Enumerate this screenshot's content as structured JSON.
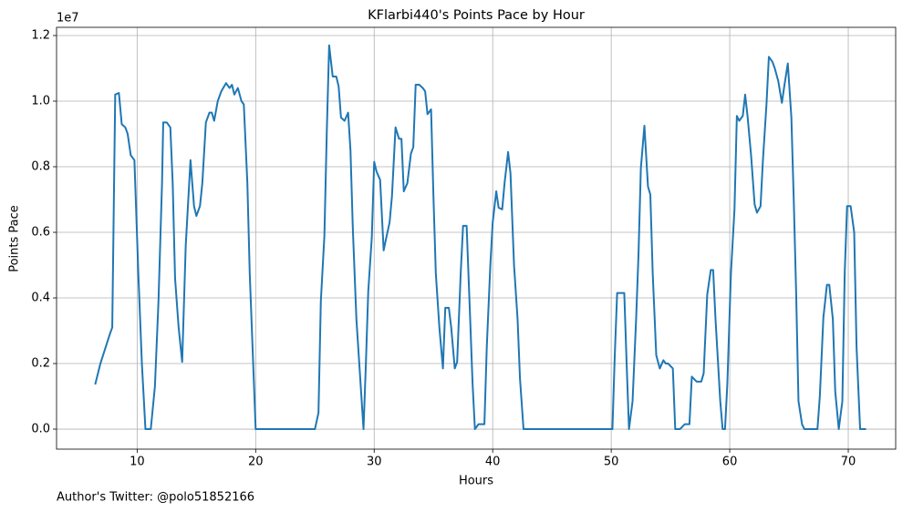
{
  "chart_data": {
    "type": "line",
    "title": "KFlarbi440's Points Pace by Hour",
    "x_label": "Hours",
    "y_label": "Points Pace",
    "y_offset_label": "1e7",
    "caption": "Author's Twitter: @polo51852166",
    "color": "#1f77b4",
    "grid": true,
    "xlim": [
      3.2,
      74.0
    ],
    "ylim": [
      -610000,
      12250000
    ],
    "xticks": [
      10,
      20,
      30,
      40,
      50,
      60,
      70
    ],
    "yticks": [
      {
        "value": 0,
        "label": "0.0"
      },
      {
        "value": 2000000,
        "label": "0.2"
      },
      {
        "value": 4000000,
        "label": "0.4"
      },
      {
        "value": 6000000,
        "label": "0.6"
      },
      {
        "value": 8000000,
        "label": "0.8"
      },
      {
        "value": 10000000,
        "label": "1.0"
      },
      {
        "value": 12000000,
        "label": "1.2"
      }
    ],
    "x": [
      6.46,
      6.9,
      7.7,
      7.9,
      8.15,
      8.46,
      8.7,
      9.0,
      9.2,
      9.46,
      9.77,
      10.1,
      10.4,
      10.7,
      11.15,
      11.5,
      11.8,
      12.1,
      12.2,
      12.5,
      12.8,
      13.0,
      13.2,
      13.5,
      13.8,
      14.1,
      14.5,
      14.8,
      15.0,
      15.3,
      15.5,
      15.8,
      16.1,
      16.3,
      16.5,
      16.8,
      17.1,
      17.5,
      17.8,
      18.0,
      18.2,
      18.5,
      18.8,
      19.0,
      19.3,
      19.5,
      20.0,
      25.0,
      25.3,
      25.5,
      25.8,
      26.0,
      26.2,
      26.5,
      26.8,
      27.0,
      27.2,
      27.5,
      27.8,
      28.0,
      28.2,
      28.5,
      29.1,
      29.3,
      29.5,
      29.8,
      30.0,
      30.2,
      30.5,
      30.8,
      31.0,
      31.3,
      31.5,
      31.8,
      32.1,
      32.3,
      32.5,
      32.8,
      33.1,
      33.3,
      33.5,
      33.8,
      34.1,
      34.3,
      34.5,
      34.8,
      35.0,
      35.2,
      35.5,
      35.8,
      36.0,
      36.3,
      36.5,
      36.8,
      37.0,
      37.3,
      37.5,
      37.8,
      38.1,
      38.3,
      38.5,
      38.8,
      39.3,
      39.5,
      39.8,
      40.0,
      40.3,
      40.5,
      40.8,
      41.0,
      41.3,
      41.5,
      41.8,
      42.1,
      42.3,
      42.6,
      50.1,
      50.3,
      50.5,
      51.1,
      51.3,
      51.5,
      51.8,
      52.1,
      52.3,
      52.5,
      52.8,
      53.1,
      53.3,
      53.5,
      53.8,
      54.1,
      54.4,
      54.6,
      54.8,
      55.2,
      55.4,
      55.8,
      56.2,
      56.6,
      56.8,
      57.2,
      57.6,
      57.8,
      58.1,
      58.4,
      58.6,
      58.8,
      59.2,
      59.4,
      59.6,
      59.8,
      60.1,
      60.4,
      60.6,
      60.8,
      61.1,
      61.3,
      61.5,
      61.8,
      62.1,
      62.3,
      62.6,
      62.8,
      63.1,
      63.3,
      63.6,
      63.8,
      64.1,
      64.4,
      64.6,
      64.9,
      65.2,
      65.4,
      65.6,
      65.8,
      66.1,
      66.3,
      67.4,
      67.6,
      67.9,
      68.2,
      68.4,
      68.7,
      68.9,
      69.2,
      69.5,
      69.7,
      69.9,
      70.2,
      70.5,
      70.7,
      71.0,
      71.5
    ],
    "values": [
      1360000,
      2000000,
      2900000,
      3100000,
      10200000,
      10250000,
      9300000,
      9200000,
      9000000,
      8350000,
      8200000,
      4750000,
      2000000,
      0,
      0,
      1300000,
      3900000,
      7500000,
      9350000,
      9350000,
      9200000,
      7500000,
      4600000,
      3100000,
      2050000,
      5600000,
      8200000,
      6800000,
      6500000,
      6800000,
      7500000,
      9350000,
      9650000,
      9650000,
      9400000,
      10000000,
      10300000,
      10550000,
      10400000,
      10500000,
      10200000,
      10400000,
      10000000,
      9900000,
      7500000,
      4750000,
      0,
      0,
      500000,
      3900000,
      5900000,
      9050000,
      11700000,
      10750000,
      10750000,
      10450000,
      9500000,
      9400000,
      9650000,
      8500000,
      6100000,
      3350000,
      0,
      2000000,
      4200000,
      5850000,
      8150000,
      7850000,
      7600000,
      5450000,
      5800000,
      6300000,
      7100000,
      9200000,
      8850000,
      8850000,
      7250000,
      7500000,
      8400000,
      8600000,
      10500000,
      10500000,
      10400000,
      10300000,
      9600000,
      9750000,
      7100000,
      4750000,
      3100000,
      1850000,
      3700000,
      3700000,
      3100000,
      1850000,
      2050000,
      4750000,
      6200000,
      6200000,
      3350000,
      1400000,
      0,
      150000,
      150000,
      2500000,
      5000000,
      6300000,
      7250000,
      6750000,
      6700000,
      7500000,
      8450000,
      7800000,
      5000000,
      3350000,
      1550000,
      0,
      0,
      2250000,
      4150000,
      4150000,
      2000000,
      0,
      850000,
      3350000,
      5300000,
      7950000,
      9250000,
      7400000,
      7150000,
      4750000,
      2250000,
      1850000,
      2100000,
      2000000,
      2000000,
      1850000,
      0,
      0,
      150000,
      150000,
      1600000,
      1450000,
      1450000,
      1700000,
      4100000,
      4850000,
      4850000,
      3350000,
      850000,
      0,
      0,
      1400000,
      4750000,
      6700000,
      9550000,
      9400000,
      9550000,
      10200000,
      9550000,
      8350000,
      6850000,
      6600000,
      6800000,
      8200000,
      9900000,
      11350000,
      11200000,
      11000000,
      10600000,
      9950000,
      10450000,
      11150000,
      9500000,
      7000000,
      4200000,
      850000,
      150000,
      0,
      0,
      1000000,
      3400000,
      4400000,
      4400000,
      3350000,
      1150000,
      0,
      850000,
      4750000,
      6800000,
      6800000,
      6000000,
      2500000,
      0,
      0
    ]
  }
}
